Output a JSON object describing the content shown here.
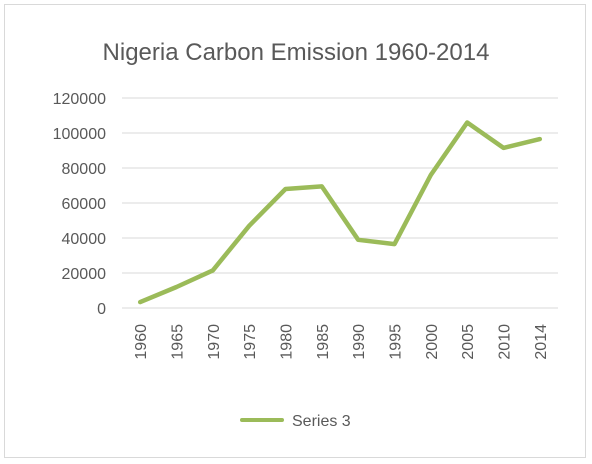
{
  "chart_data": {
    "type": "line",
    "title": "Nigeria Carbon Emission 1960-2014",
    "xlabel": "",
    "ylabel": "",
    "categories": [
      "1960",
      "1965",
      "1970",
      "1975",
      "1980",
      "1985",
      "1990",
      "1995",
      "2000",
      "2005",
      "2010",
      "2014"
    ],
    "series": [
      {
        "name": "Series 3",
        "color": "#9bbb59",
        "values": [
          3400,
          12000,
          21500,
          47000,
          68000,
          69500,
          39000,
          36500,
          76000,
          106000,
          91500,
          96500
        ]
      }
    ],
    "ylim": [
      0,
      120000
    ],
    "yticks": [
      "0",
      "20000",
      "40000",
      "60000",
      "80000",
      "100000",
      "120000"
    ],
    "grid": true,
    "legend_position": "bottom"
  }
}
